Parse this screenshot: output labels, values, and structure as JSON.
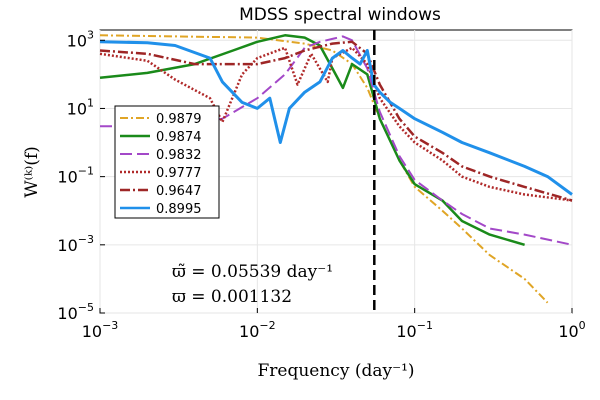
{
  "chart_data": {
    "type": "line",
    "title": "MDSS spectral windows",
    "xlabel": "Frequency (day⁻¹)",
    "ylabel": "W⁽ᵏ⁾(f)",
    "xscale": "log",
    "yscale": "log",
    "xlim": [
      0.001,
      1
    ],
    "ylim": [
      1e-05,
      2000
    ],
    "x_ticks": [
      {
        "value": 0.001,
        "base": "10",
        "exp": "−3"
      },
      {
        "value": 0.01,
        "base": "10",
        "exp": "−2"
      },
      {
        "value": 0.1,
        "base": "10",
        "exp": "−1"
      },
      {
        "value": 1,
        "base": "10",
        "exp": "0"
      }
    ],
    "y_ticks": [
      {
        "value": 1e-05,
        "base": "10",
        "exp": "−5"
      },
      {
        "value": 0.001,
        "base": "10",
        "exp": "−3"
      },
      {
        "value": 0.1,
        "base": "10",
        "exp": "−1"
      },
      {
        "value": 10,
        "base": "10",
        "exp": "1"
      },
      {
        "value": 1000,
        "base": "10",
        "exp": "3"
      }
    ],
    "grid": true,
    "legend_position": "left",
    "vline": {
      "x": 0.05539,
      "style": "dashed",
      "color": "#000000"
    },
    "annotations": [
      "ϖ̃ = 0.05539 day⁻¹",
      "ϖ = 0.001132"
    ],
    "series": [
      {
        "name": "0.9879",
        "color": "#e0a526",
        "dash": "8,3,2,3",
        "width": 2,
        "points": [
          [
            0.001,
            1400
          ],
          [
            0.003,
            1300
          ],
          [
            0.01,
            1200
          ],
          [
            0.02,
            800
          ],
          [
            0.03,
            500
          ],
          [
            0.04,
            200
          ],
          [
            0.05,
            40
          ],
          [
            0.06,
            5
          ],
          [
            0.08,
            0.3
          ],
          [
            0.1,
            0.05
          ],
          [
            0.15,
            0.01
          ],
          [
            0.2,
            0.003
          ],
          [
            0.3,
            0.0005
          ],
          [
            0.5,
            0.0001
          ],
          [
            0.7,
            2e-05
          ]
        ]
      },
      {
        "name": "0.9874",
        "color": "#1a8a1a",
        "dash": "",
        "width": 2.5,
        "points": [
          [
            0.001,
            80
          ],
          [
            0.002,
            110
          ],
          [
            0.004,
            200
          ],
          [
            0.007,
            500
          ],
          [
            0.01,
            900
          ],
          [
            0.015,
            1400
          ],
          [
            0.02,
            1200
          ],
          [
            0.025,
            700
          ],
          [
            0.03,
            150
          ],
          [
            0.035,
            40
          ],
          [
            0.04,
            200
          ],
          [
            0.05,
            100
          ],
          [
            0.06,
            5
          ],
          [
            0.08,
            0.3
          ],
          [
            0.1,
            0.06
          ],
          [
            0.15,
            0.02
          ],
          [
            0.2,
            0.005
          ],
          [
            0.3,
            0.002
          ],
          [
            0.5,
            0.001
          ]
        ]
      },
      {
        "name": "0.9832",
        "color": "#a348c8",
        "dash": "12,5",
        "width": 2,
        "points": [
          [
            0.001,
            3
          ],
          [
            0.003,
            3
          ],
          [
            0.006,
            5
          ],
          [
            0.01,
            20
          ],
          [
            0.015,
            100
          ],
          [
            0.02,
            600
          ],
          [
            0.025,
            900
          ],
          [
            0.03,
            1100
          ],
          [
            0.035,
            1300
          ],
          [
            0.04,
            1000
          ],
          [
            0.05,
            150
          ],
          [
            0.06,
            8
          ],
          [
            0.08,
            0.4
          ],
          [
            0.1,
            0.08
          ],
          [
            0.15,
            0.02
          ],
          [
            0.2,
            0.008
          ],
          [
            0.3,
            0.003
          ],
          [
            0.5,
            0.002
          ],
          [
            1,
            0.001
          ]
        ]
      },
      {
        "name": "0.9777",
        "color": "#b02a2a",
        "dash": "2,2",
        "width": 2.5,
        "points": [
          [
            0.001,
            400
          ],
          [
            0.002,
            250
          ],
          [
            0.003,
            70
          ],
          [
            0.005,
            20
          ],
          [
            0.006,
            4
          ],
          [
            0.008,
            100
          ],
          [
            0.01,
            300
          ],
          [
            0.015,
            600
          ],
          [
            0.018,
            50
          ],
          [
            0.022,
            400
          ],
          [
            0.028,
            60
          ],
          [
            0.03,
            300
          ],
          [
            0.04,
            600
          ],
          [
            0.05,
            200
          ],
          [
            0.06,
            20
          ],
          [
            0.08,
            3
          ],
          [
            0.1,
            1
          ],
          [
            0.15,
            0.3
          ],
          [
            0.2,
            0.1
          ],
          [
            0.3,
            0.05
          ],
          [
            0.5,
            0.03
          ],
          [
            1,
            0.02
          ]
        ]
      },
      {
        "name": "0.9647",
        "color": "#9e2626",
        "dash": "10,3,2,3",
        "width": 2.5,
        "points": [
          [
            0.001,
            500
          ],
          [
            0.002,
            400
          ],
          [
            0.004,
            200
          ],
          [
            0.01,
            200
          ],
          [
            0.015,
            300
          ],
          [
            0.02,
            500
          ],
          [
            0.03,
            800
          ],
          [
            0.04,
            900
          ],
          [
            0.05,
            400
          ],
          [
            0.06,
            50
          ],
          [
            0.08,
            5
          ],
          [
            0.1,
            1.5
          ],
          [
            0.15,
            0.5
          ],
          [
            0.2,
            0.2
          ],
          [
            0.3,
            0.1
          ],
          [
            0.5,
            0.05
          ],
          [
            1,
            0.02
          ]
        ]
      },
      {
        "name": "0.8995",
        "color": "#2090ea",
        "dash": "",
        "width": 3,
        "points": [
          [
            0.001,
            900
          ],
          [
            0.002,
            850
          ],
          [
            0.003,
            700
          ],
          [
            0.005,
            300
          ],
          [
            0.006,
            60
          ],
          [
            0.008,
            15
          ],
          [
            0.01,
            10
          ],
          [
            0.012,
            20
          ],
          [
            0.014,
            1
          ],
          [
            0.016,
            10
          ],
          [
            0.02,
            30
          ],
          [
            0.025,
            60
          ],
          [
            0.03,
            300
          ],
          [
            0.035,
            500
          ],
          [
            0.04,
            300
          ],
          [
            0.045,
            200
          ],
          [
            0.05,
            500
          ],
          [
            0.055,
            50
          ],
          [
            0.06,
            30
          ],
          [
            0.07,
            15
          ],
          [
            0.08,
            10
          ],
          [
            0.1,
            5
          ],
          [
            0.15,
            2
          ],
          [
            0.2,
            1
          ],
          [
            0.3,
            0.5
          ],
          [
            0.5,
            0.2
          ],
          [
            0.7,
            0.1
          ],
          [
            1,
            0.03
          ]
        ]
      }
    ]
  }
}
